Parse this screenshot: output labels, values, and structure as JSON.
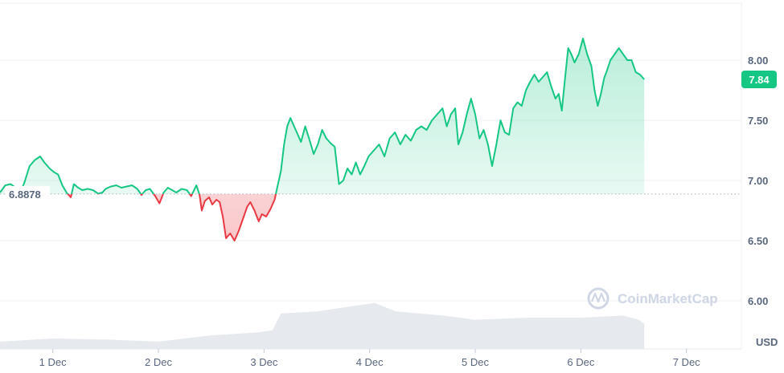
{
  "chart_data": {
    "type": "line",
    "currency_label": "USD",
    "watermark": "CoinMarketCap",
    "baseline": 6.8878,
    "baseline_label": "6.8878",
    "current_value": 7.84,
    "current_label": "7.84",
    "ylim": [
      5.6,
      8.5
    ],
    "yticks": [
      {
        "value": 6.0,
        "label": "6.00"
      },
      {
        "value": 6.5,
        "label": "6.50"
      },
      {
        "value": 7.0,
        "label": "7.00"
      },
      {
        "value": 7.5,
        "label": "7.50"
      },
      {
        "value": 8.0,
        "label": "8.00"
      }
    ],
    "xlim": [
      0.5,
      7.52
    ],
    "xticks": [
      {
        "value": 1,
        "label": "1 Dec"
      },
      {
        "value": 2,
        "label": "2 Dec"
      },
      {
        "value": 3,
        "label": "3 Dec"
      },
      {
        "value": 4,
        "label": "4 Dec"
      },
      {
        "value": 5,
        "label": "5 Dec"
      },
      {
        "value": 6,
        "label": "6 Dec"
      },
      {
        "value": 7,
        "label": "7 Dec"
      }
    ],
    "colors": {
      "up": "#16c784",
      "down": "#ea3943",
      "volume": "#e6e9ee",
      "grid": "#eff2f5",
      "baseline": "#aab2bf"
    },
    "price_series": [
      [
        0.5,
        6.9
      ],
      [
        0.55,
        6.96
      ],
      [
        0.6,
        6.97
      ],
      [
        0.65,
        6.94
      ],
      [
        0.69,
        6.9
      ],
      [
        0.73,
        6.98
      ],
      [
        0.78,
        7.12
      ],
      [
        0.83,
        7.17
      ],
      [
        0.88,
        7.2
      ],
      [
        0.92,
        7.15
      ],
      [
        0.97,
        7.1
      ],
      [
        1.01,
        7.07
      ],
      [
        1.05,
        7.05
      ],
      [
        1.09,
        6.96
      ],
      [
        1.13,
        6.9
      ],
      [
        1.17,
        6.86
      ],
      [
        1.2,
        6.97
      ],
      [
        1.24,
        6.94
      ],
      [
        1.28,
        6.92
      ],
      [
        1.33,
        6.93
      ],
      [
        1.38,
        6.92
      ],
      [
        1.43,
        6.89
      ],
      [
        1.47,
        6.9
      ],
      [
        1.5,
        6.93
      ],
      [
        1.55,
        6.95
      ],
      [
        1.6,
        6.96
      ],
      [
        1.65,
        6.94
      ],
      [
        1.7,
        6.95
      ],
      [
        1.75,
        6.96
      ],
      [
        1.8,
        6.93
      ],
      [
        1.84,
        6.88
      ],
      [
        1.88,
        6.92
      ],
      [
        1.92,
        6.93
      ],
      [
        1.97,
        6.87
      ],
      [
        2.01,
        6.81
      ],
      [
        2.05,
        6.9
      ],
      [
        2.09,
        6.94
      ],
      [
        2.13,
        6.92
      ],
      [
        2.17,
        6.9
      ],
      [
        2.22,
        6.93
      ],
      [
        2.27,
        6.92
      ],
      [
        2.31,
        6.87
      ],
      [
        2.36,
        6.96
      ],
      [
        2.39,
        6.88
      ],
      [
        2.41,
        6.75
      ],
      [
        2.44,
        6.83
      ],
      [
        2.48,
        6.86
      ],
      [
        2.51,
        6.8
      ],
      [
        2.55,
        6.84
      ],
      [
        2.58,
        6.82
      ],
      [
        2.61,
        6.7
      ],
      [
        2.64,
        6.52
      ],
      [
        2.68,
        6.56
      ],
      [
        2.72,
        6.5
      ],
      [
        2.76,
        6.58
      ],
      [
        2.8,
        6.68
      ],
      [
        2.84,
        6.78
      ],
      [
        2.87,
        6.82
      ],
      [
        2.91,
        6.75
      ],
      [
        2.95,
        6.66
      ],
      [
        2.98,
        6.72
      ],
      [
        3.02,
        6.7
      ],
      [
        3.06,
        6.76
      ],
      [
        3.1,
        6.84
      ],
      [
        3.13,
        6.96
      ],
      [
        3.16,
        7.08
      ],
      [
        3.19,
        7.3
      ],
      [
        3.22,
        7.45
      ],
      [
        3.25,
        7.52
      ],
      [
        3.28,
        7.46
      ],
      [
        3.31,
        7.4
      ],
      [
        3.35,
        7.32
      ],
      [
        3.39,
        7.45
      ],
      [
        3.43,
        7.34
      ],
      [
        3.47,
        7.22
      ],
      [
        3.51,
        7.3
      ],
      [
        3.55,
        7.42
      ],
      [
        3.59,
        7.35
      ],
      [
        3.63,
        7.31
      ],
      [
        3.67,
        7.28
      ],
      [
        3.71,
        6.97
      ],
      [
        3.75,
        7.0
      ],
      [
        3.79,
        7.1
      ],
      [
        3.83,
        7.05
      ],
      [
        3.87,
        7.15
      ],
      [
        3.91,
        7.05
      ],
      [
        3.95,
        7.12
      ],
      [
        3.99,
        7.2
      ],
      [
        4.04,
        7.25
      ],
      [
        4.09,
        7.3
      ],
      [
        4.14,
        7.2
      ],
      [
        4.19,
        7.35
      ],
      [
        4.24,
        7.4
      ],
      [
        4.29,
        7.3
      ],
      [
        4.34,
        7.38
      ],
      [
        4.39,
        7.33
      ],
      [
        4.44,
        7.42
      ],
      [
        4.49,
        7.45
      ],
      [
        4.54,
        7.42
      ],
      [
        4.59,
        7.5
      ],
      [
        4.64,
        7.55
      ],
      [
        4.69,
        7.6
      ],
      [
        4.73,
        7.45
      ],
      [
        4.77,
        7.55
      ],
      [
        4.81,
        7.6
      ],
      [
        4.84,
        7.3
      ],
      [
        4.88,
        7.4
      ],
      [
        4.92,
        7.55
      ],
      [
        4.96,
        7.68
      ],
      [
        5.0,
        7.55
      ],
      [
        5.04,
        7.35
      ],
      [
        5.08,
        7.42
      ],
      [
        5.12,
        7.3
      ],
      [
        5.16,
        7.12
      ],
      [
        5.2,
        7.3
      ],
      [
        5.24,
        7.5
      ],
      [
        5.28,
        7.4
      ],
      [
        5.32,
        7.38
      ],
      [
        5.36,
        7.6
      ],
      [
        5.4,
        7.65
      ],
      [
        5.44,
        7.62
      ],
      [
        5.48,
        7.75
      ],
      [
        5.52,
        7.82
      ],
      [
        5.56,
        7.88
      ],
      [
        5.6,
        7.82
      ],
      [
        5.64,
        7.86
      ],
      [
        5.68,
        7.9
      ],
      [
        5.72,
        7.78
      ],
      [
        5.76,
        7.68
      ],
      [
        5.79,
        7.72
      ],
      [
        5.82,
        7.58
      ],
      [
        5.85,
        7.85
      ],
      [
        5.88,
        8.1
      ],
      [
        5.91,
        8.05
      ],
      [
        5.94,
        7.98
      ],
      [
        5.98,
        8.05
      ],
      [
        6.02,
        8.18
      ],
      [
        6.06,
        8.05
      ],
      [
        6.1,
        7.95
      ],
      [
        6.13,
        7.75
      ],
      [
        6.16,
        7.62
      ],
      [
        6.19,
        7.72
      ],
      [
        6.22,
        7.85
      ],
      [
        6.25,
        7.92
      ],
      [
        6.28,
        8.0
      ],
      [
        6.32,
        8.05
      ],
      [
        6.36,
        8.1
      ],
      [
        6.4,
        8.05
      ],
      [
        6.44,
        8.0
      ],
      [
        6.48,
        8.0
      ],
      [
        6.52,
        7.9
      ],
      [
        6.56,
        7.88
      ],
      [
        6.6,
        7.84
      ]
    ],
    "volume_series": [
      [
        0.5,
        0.035
      ],
      [
        1.0,
        0.05
      ],
      [
        1.5,
        0.045
      ],
      [
        2.0,
        0.035
      ],
      [
        2.5,
        0.065
      ],
      [
        2.95,
        0.08
      ],
      [
        3.08,
        0.09
      ],
      [
        3.16,
        0.17
      ],
      [
        3.5,
        0.18
      ],
      [
        3.9,
        0.21
      ],
      [
        4.05,
        0.22
      ],
      [
        4.25,
        0.18
      ],
      [
        4.7,
        0.16
      ],
      [
        5.0,
        0.14
      ],
      [
        5.5,
        0.15
      ],
      [
        6.0,
        0.15
      ],
      [
        6.4,
        0.16
      ],
      [
        6.55,
        0.14
      ],
      [
        6.6,
        0.12
      ]
    ]
  }
}
